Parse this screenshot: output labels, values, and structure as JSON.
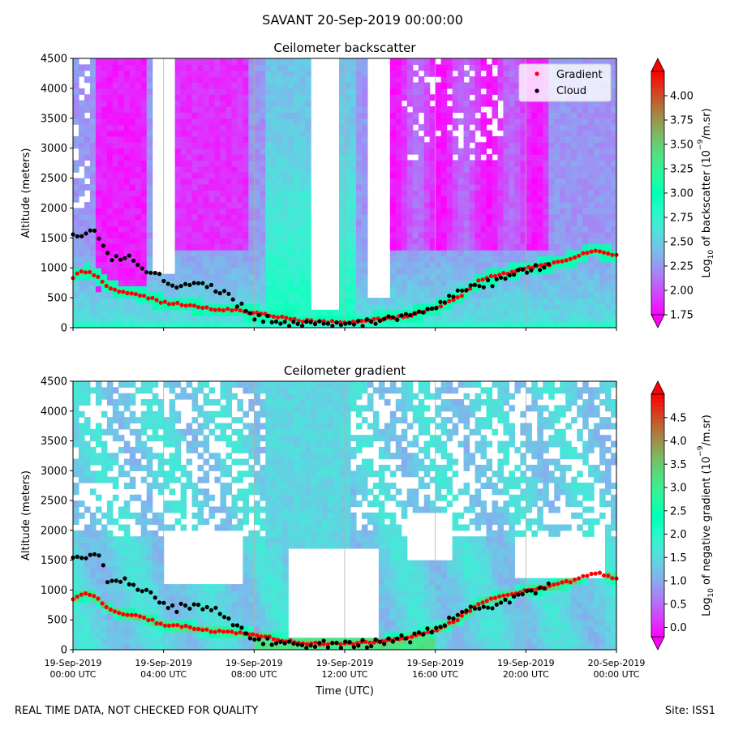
{
  "suptitle": "SAVANT 20-Sep-2019 00:00:00",
  "footer": {
    "left": "REAL TIME DATA, NOT CHECKED FOR QUALITY",
    "right": "Site: ISS1"
  },
  "colors": {
    "point_gradient": "#ff0000",
    "point_cloud": "#000000",
    "missing": "#ffffff"
  },
  "chart_data": [
    {
      "type": "heatmap",
      "title": "Ceilometer backscatter",
      "ylabel": "Altitude (meters)",
      "ylim": [
        0,
        4500
      ],
      "yticks": [
        "0",
        "500",
        "1000",
        "1500",
        "2000",
        "2500",
        "3000",
        "3500",
        "4000",
        "4500"
      ],
      "xlim": [
        0,
        24
      ],
      "grid": "vertical lines at 4-hour ticks",
      "legend": {
        "position": "top-right",
        "entries": [
          "Gradient",
          "Cloud"
        ]
      },
      "colorbar": {
        "colormap": "rainbow",
        "label": "Log10 of backscatter (10^-9/m.sr)",
        "label_parts": [
          "Log",
          "10",
          " of backscatter (10",
          "−9",
          "/m.sr)"
        ],
        "range": [
          1.75,
          4.25
        ],
        "ticks": [
          "1.75",
          "2.00",
          "2.25",
          "2.50",
          "2.75",
          "3.00",
          "3.25",
          "3.50",
          "3.75",
          "4.00"
        ]
      },
      "series": [
        {
          "name": "Gradient",
          "x": [
            0,
            0.5,
            1,
            1.5,
            2,
            3,
            4,
            5,
            6,
            7,
            8,
            9,
            10,
            11,
            12,
            13,
            14,
            15,
            16,
            17,
            18,
            19,
            20,
            21,
            22,
            23,
            24
          ],
          "y": [
            850,
            950,
            880,
            700,
            620,
            550,
            420,
            380,
            320,
            300,
            250,
            180,
            120,
            100,
            100,
            120,
            160,
            220,
            330,
            500,
            800,
            900,
            1000,
            1050,
            1150,
            1300,
            1200
          ]
        },
        {
          "name": "Cloud",
          "x": [
            0,
            0.5,
            1,
            1.5,
            2.5,
            4.5,
            6,
            8,
            9,
            10,
            11,
            12,
            13,
            14,
            15,
            16,
            17,
            18,
            19,
            20,
            21
          ],
          "y": [
            1600,
            1550,
            1650,
            1200,
            1150,
            700,
            750,
            200,
            100,
            80,
            80,
            80,
            100,
            150,
            200,
            350,
            600,
            700,
            800,
            950,
            1050
          ]
        }
      ]
    },
    {
      "type": "heatmap",
      "title": "Ceilometer gradient",
      "xlabel": "Time (UTC)",
      "ylabel": "Altitude (meters)",
      "ylim": [
        0,
        4500
      ],
      "yticks": [
        "0",
        "500",
        "1000",
        "1500",
        "2000",
        "2500",
        "3000",
        "3500",
        "4000",
        "4500"
      ],
      "xlim": [
        0,
        24
      ],
      "xticks": [
        {
          "hour": 0,
          "date": "19-Sep-2019",
          "time": "00:00 UTC"
        },
        {
          "hour": 4,
          "date": "19-Sep-2019",
          "time": "04:00 UTC"
        },
        {
          "hour": 8,
          "date": "19-Sep-2019",
          "time": "08:00 UTC"
        },
        {
          "hour": 12,
          "date": "19-Sep-2019",
          "time": "12:00 UTC"
        },
        {
          "hour": 16,
          "date": "19-Sep-2019",
          "time": "16:00 UTC"
        },
        {
          "hour": 20,
          "date": "19-Sep-2019",
          "time": "20:00 UTC"
        },
        {
          "hour": 24,
          "date": "20-Sep-2019",
          "time": "00:00 UTC"
        }
      ],
      "grid": "vertical lines at 4-hour ticks",
      "colorbar": {
        "colormap": "rainbow",
        "label": "Log10 of negative gradient (10^-9/m.sr)",
        "label_parts": [
          "Log",
          "10",
          " of negative gradient (10",
          "−9",
          "/m.sr)"
        ],
        "range": [
          -0.2,
          5.0
        ],
        "ticks": [
          "0.0",
          "0.5",
          "1.0",
          "1.5",
          "2.0",
          "2.5",
          "3.0",
          "3.5",
          "4.0",
          "4.5"
        ]
      },
      "series": [
        {
          "name": "Gradient",
          "x": [
            0,
            0.5,
            1,
            1.5,
            2,
            3,
            4,
            5,
            6,
            7,
            8,
            9,
            10,
            11,
            12,
            13,
            14,
            15,
            16,
            17,
            18,
            19,
            20,
            21,
            22,
            23,
            24
          ],
          "y": [
            850,
            950,
            880,
            700,
            620,
            550,
            420,
            380,
            320,
            300,
            250,
            180,
            120,
            100,
            100,
            120,
            160,
            220,
            330,
            500,
            800,
            900,
            1000,
            1050,
            1150,
            1300,
            1200
          ]
        },
        {
          "name": "Cloud",
          "x": [
            0,
            0.5,
            1,
            1.5,
            2.5,
            4.5,
            6,
            8,
            9,
            10,
            11,
            12,
            13,
            14,
            15,
            16,
            17,
            18,
            19,
            20,
            21
          ],
          "y": [
            1600,
            1550,
            1650,
            1200,
            1150,
            700,
            750,
            200,
            100,
            80,
            80,
            80,
            100,
            150,
            200,
            350,
            600,
            700,
            800,
            950,
            1050
          ]
        }
      ]
    }
  ]
}
